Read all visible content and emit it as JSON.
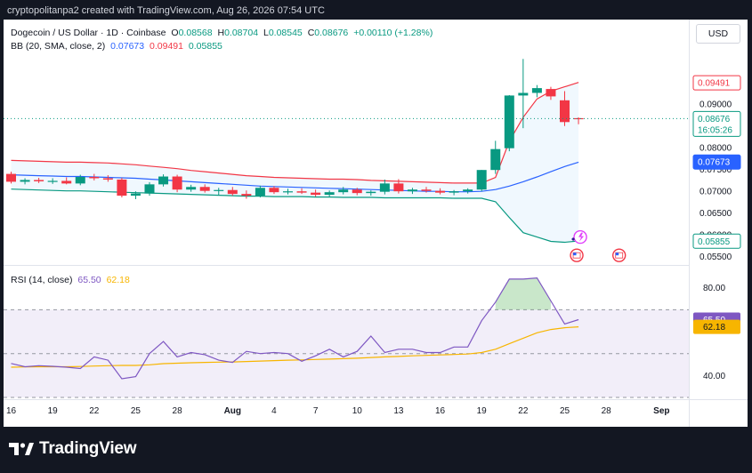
{
  "caption": "cryptopolitanpa2 created with TradingView.com, Aug 26, 2026 07:54 UTC",
  "legend": {
    "symbol": "Dogecoin / US Dollar · 1D · Coinbase",
    "o_label": "O",
    "o": "0.08568",
    "h_label": "H",
    "h": "0.08704",
    "l_label": "L",
    "l": "0.08545",
    "c_label": "C",
    "c": "0.08676",
    "change": "+0.00110 (+1.28%)",
    "bb_label": "BB (20, SMA, close, 2)",
    "bb_basis": "0.07673",
    "bb_upper": "0.09491",
    "bb_lower": "0.05855",
    "rsi_label": "RSI (14, close)",
    "rsi": "65.50",
    "rsi_ma": "62.18"
  },
  "currency": "USD",
  "brand": "TradingView",
  "colors": {
    "up": "#089981",
    "down": "#f23645",
    "basis": "#2962ff",
    "upper": "#f23645",
    "lower": "#089981",
    "rsi": "#7e57c2",
    "rsi_ma": "#f7b500",
    "band_fill": "#e3f2fd"
  },
  "chart_data": [
    {
      "type": "candlestick",
      "title": "Dogecoin / US Dollar · 1D · Coinbase",
      "x_tick_labels": [
        "16",
        "19",
        "22",
        "25",
        "28",
        "Aug",
        "4",
        "7",
        "10",
        "13",
        "16",
        "19",
        "22",
        "25",
        "28",
        "Sep"
      ],
      "y_tick_labels": [
        "0.05500",
        "0.06000",
        "0.06500",
        "0.07000",
        "0.07500",
        "0.08000",
        "0.09000"
      ],
      "ylim": [
        0.0535,
        0.1025
      ],
      "price_labels": {
        "upper": "0.09491",
        "last": "0.08676",
        "countdown": "16:05:26",
        "basis": "0.07673",
        "lower": "0.05855"
      },
      "candles": [
        {
          "o": 0.074,
          "h": 0.0745,
          "l": 0.0718,
          "c": 0.0722
        },
        {
          "o": 0.0722,
          "h": 0.073,
          "l": 0.0716,
          "c": 0.0726
        },
        {
          "o": 0.0726,
          "h": 0.0731,
          "l": 0.0719,
          "c": 0.0723
        },
        {
          "o": 0.0723,
          "h": 0.073,
          "l": 0.0717,
          "c": 0.0724
        },
        {
          "o": 0.0724,
          "h": 0.0732,
          "l": 0.0716,
          "c": 0.0718
        },
        {
          "o": 0.0718,
          "h": 0.0738,
          "l": 0.0714,
          "c": 0.0733
        },
        {
          "o": 0.0733,
          "h": 0.074,
          "l": 0.0725,
          "c": 0.073
        },
        {
          "o": 0.073,
          "h": 0.0737,
          "l": 0.0722,
          "c": 0.0727
        },
        {
          "o": 0.0727,
          "h": 0.0731,
          "l": 0.0686,
          "c": 0.069
        },
        {
          "o": 0.069,
          "h": 0.07,
          "l": 0.0682,
          "c": 0.0695
        },
        {
          "o": 0.0695,
          "h": 0.0721,
          "l": 0.069,
          "c": 0.0716
        },
        {
          "o": 0.0716,
          "h": 0.0739,
          "l": 0.0711,
          "c": 0.0734
        },
        {
          "o": 0.0734,
          "h": 0.0738,
          "l": 0.0698,
          "c": 0.0704
        },
        {
          "o": 0.0704,
          "h": 0.0715,
          "l": 0.0699,
          "c": 0.071
        },
        {
          "o": 0.071,
          "h": 0.0716,
          "l": 0.0697,
          "c": 0.0701
        },
        {
          "o": 0.0701,
          "h": 0.0708,
          "l": 0.0692,
          "c": 0.0703
        },
        {
          "o": 0.0703,
          "h": 0.071,
          "l": 0.069,
          "c": 0.0694
        },
        {
          "o": 0.0694,
          "h": 0.0702,
          "l": 0.0683,
          "c": 0.069
        },
        {
          "o": 0.069,
          "h": 0.0713,
          "l": 0.0686,
          "c": 0.0708
        },
        {
          "o": 0.0708,
          "h": 0.0712,
          "l": 0.0694,
          "c": 0.0698
        },
        {
          "o": 0.0698,
          "h": 0.0706,
          "l": 0.0693,
          "c": 0.07
        },
        {
          "o": 0.07,
          "h": 0.0707,
          "l": 0.0694,
          "c": 0.0697
        },
        {
          "o": 0.0697,
          "h": 0.0704,
          "l": 0.0688,
          "c": 0.0692
        },
        {
          "o": 0.0692,
          "h": 0.0702,
          "l": 0.0687,
          "c": 0.0698
        },
        {
          "o": 0.0698,
          "h": 0.071,
          "l": 0.0693,
          "c": 0.0704
        },
        {
          "o": 0.0704,
          "h": 0.0708,
          "l": 0.0691,
          "c": 0.0696
        },
        {
          "o": 0.0696,
          "h": 0.0702,
          "l": 0.069,
          "c": 0.0699
        },
        {
          "o": 0.0699,
          "h": 0.0727,
          "l": 0.0693,
          "c": 0.0718
        },
        {
          "o": 0.0718,
          "h": 0.0728,
          "l": 0.0695,
          "c": 0.07
        },
        {
          "o": 0.07,
          "h": 0.0708,
          "l": 0.0694,
          "c": 0.0704
        },
        {
          "o": 0.0704,
          "h": 0.071,
          "l": 0.0697,
          "c": 0.0701
        },
        {
          "o": 0.0701,
          "h": 0.0707,
          "l": 0.0693,
          "c": 0.0697
        },
        {
          "o": 0.0697,
          "h": 0.0703,
          "l": 0.0691,
          "c": 0.07
        },
        {
          "o": 0.07,
          "h": 0.0707,
          "l": 0.0695,
          "c": 0.0704
        },
        {
          "o": 0.0704,
          "h": 0.0749,
          "l": 0.07,
          "c": 0.0749
        },
        {
          "o": 0.0749,
          "h": 0.0816,
          "l": 0.074,
          "c": 0.0797
        },
        {
          "o": 0.0799,
          "h": 0.0921,
          "l": 0.0792,
          "c": 0.092
        },
        {
          "o": 0.092,
          "h": 0.1004,
          "l": 0.0845,
          "c": 0.0926
        },
        {
          "o": 0.0926,
          "h": 0.0944,
          "l": 0.0916,
          "c": 0.0937
        },
        {
          "o": 0.0935,
          "h": 0.094,
          "l": 0.091,
          "c": 0.0918
        },
        {
          "o": 0.0909,
          "h": 0.093,
          "l": 0.085,
          "c": 0.0859
        },
        {
          "o": 0.0868,
          "h": 0.087,
          "l": 0.0854,
          "c": 0.0867
        }
      ],
      "bollinger": {
        "upper": [
          0.0771,
          0.077,
          0.0769,
          0.0768,
          0.0767,
          0.0767,
          0.0766,
          0.0765,
          0.0763,
          0.0761,
          0.0758,
          0.0755,
          0.0752,
          0.0748,
          0.0745,
          0.0742,
          0.0739,
          0.0736,
          0.0734,
          0.0732,
          0.0731,
          0.073,
          0.0729,
          0.0728,
          0.0728,
          0.0727,
          0.0725,
          0.0724,
          0.0723,
          0.0722,
          0.0721,
          0.072,
          0.0719,
          0.0719,
          0.0719,
          0.0732,
          0.0815,
          0.087,
          0.0912,
          0.093,
          0.094,
          0.095
        ],
        "basis": [
          0.0738,
          0.0737,
          0.0736,
          0.0735,
          0.0734,
          0.0734,
          0.0733,
          0.0732,
          0.0731,
          0.073,
          0.0728,
          0.0726,
          0.0724,
          0.0722,
          0.072,
          0.0718,
          0.0716,
          0.0714,
          0.0712,
          0.0711,
          0.071,
          0.0709,
          0.0708,
          0.0707,
          0.0706,
          0.0705,
          0.0704,
          0.0703,
          0.0702,
          0.0701,
          0.07,
          0.07,
          0.0699,
          0.0699,
          0.07,
          0.0704,
          0.0712,
          0.0722,
          0.0733,
          0.0745,
          0.0757,
          0.0767
        ],
        "lower": [
          0.0705,
          0.0704,
          0.0703,
          0.0702,
          0.0701,
          0.0701,
          0.07,
          0.0699,
          0.0698,
          0.0697,
          0.0696,
          0.0695,
          0.0694,
          0.0693,
          0.0692,
          0.0691,
          0.069,
          0.0689,
          0.0689,
          0.0688,
          0.0688,
          0.0688,
          0.0687,
          0.0687,
          0.0686,
          0.0686,
          0.0686,
          0.0685,
          0.0685,
          0.0685,
          0.0685,
          0.0685,
          0.0684,
          0.0684,
          0.0684,
          0.0676,
          0.064,
          0.0605,
          0.0595,
          0.0585,
          0.0583,
          0.0586
        ]
      }
    },
    {
      "type": "line",
      "title": "RSI (14, close)",
      "y_tick_labels": [
        "40.00",
        "80.00"
      ],
      "ylim": [
        30,
        88
      ],
      "levels": [
        70,
        50,
        30
      ],
      "series": [
        {
          "name": "RSI",
          "values": [
            45.5,
            44.0,
            44.5,
            44.2,
            43.8,
            43.2,
            48.5,
            47.0,
            38.5,
            39.5,
            50.0,
            55.5,
            48.5,
            50.5,
            49.5,
            47.0,
            46.0,
            51.0,
            50.0,
            50.5,
            50.0,
            46.5,
            49.0,
            52.0,
            48.5,
            51.0,
            58.0,
            50.5,
            52.0,
            52.0,
            50.5,
            50.5,
            53.0,
            53.0,
            65.0,
            73.5,
            84.0,
            84.0,
            84.5,
            74.0,
            63.5,
            65.5
          ]
        },
        {
          "name": "MA",
          "values": [
            43.8,
            43.9,
            44.0,
            44.0,
            44.0,
            44.1,
            44.3,
            44.5,
            44.6,
            44.6,
            44.9,
            45.4,
            45.6,
            45.8,
            46.0,
            46.1,
            46.2,
            46.4,
            46.6,
            46.8,
            47.0,
            47.1,
            47.3,
            47.5,
            47.7,
            47.9,
            48.2,
            48.5,
            48.7,
            49.0,
            49.2,
            49.4,
            49.6,
            49.8,
            50.5,
            52.0,
            54.5,
            57.0,
            59.5,
            61.0,
            61.8,
            62.2
          ]
        }
      ],
      "value_labels": {
        "rsi": "65.50",
        "ma": "62.18"
      }
    }
  ]
}
